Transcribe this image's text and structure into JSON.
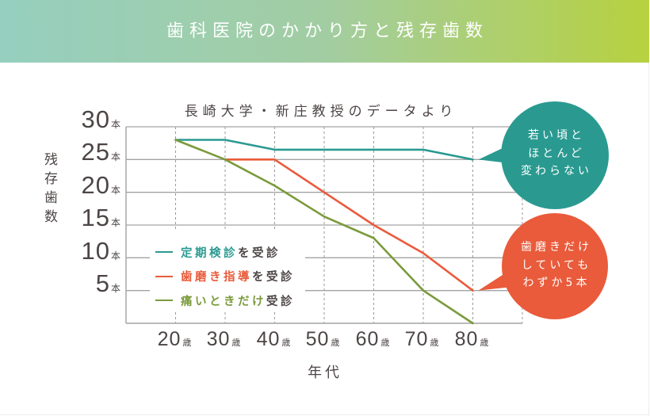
{
  "header": {
    "title": "歯科医院のかかり方と残存歯数"
  },
  "colors": {
    "header_gradient_start": "#96cfbf",
    "header_gradient_end": "#b7d13f",
    "teal": "#2a9a91",
    "orange": "#e95b3b",
    "green": "#7b9b3b",
    "text": "#4d4545",
    "grid": "#a3a3a3"
  },
  "chart_data": {
    "type": "line",
    "title": "長崎大学・新庄教授のデータより",
    "xlabel": "年代",
    "ylabel": "残存歯数",
    "x": [
      20,
      30,
      40,
      50,
      60,
      70,
      80
    ],
    "xlim": [
      10,
      90
    ],
    "ylim": [
      0,
      30
    ],
    "x_ticks": [
      {
        "value": 20,
        "num": "20",
        "unit": "歳"
      },
      {
        "value": 30,
        "num": "30",
        "unit": "歳"
      },
      {
        "value": 40,
        "num": "40",
        "unit": "歳"
      },
      {
        "value": 50,
        "num": "50",
        "unit": "歳"
      },
      {
        "value": 60,
        "num": "60",
        "unit": "歳"
      },
      {
        "value": 70,
        "num": "70",
        "unit": "歳"
      },
      {
        "value": 80,
        "num": "80",
        "unit": "歳"
      }
    ],
    "y_ticks": [
      {
        "value": 30,
        "num": "30",
        "unit": "本"
      },
      {
        "value": 25,
        "num": "25",
        "unit": "本"
      },
      {
        "value": 20,
        "num": "20",
        "unit": "本"
      },
      {
        "value": 15,
        "num": "15",
        "unit": "本"
      },
      {
        "value": 10,
        "num": "10",
        "unit": "本"
      },
      {
        "value": 5,
        "num": "5",
        "unit": "本"
      }
    ],
    "grid": {
      "horizontal": "solid",
      "vertical": "dotted"
    },
    "legend_position": "inside lower-left",
    "series": [
      {
        "name": "定期検診を受診",
        "highlight": "定期検診",
        "suffix": "を受診",
        "color": "#2a9a91",
        "values": [
          28,
          28,
          26.5,
          26.5,
          26.5,
          26.5,
          25
        ]
      },
      {
        "name": "歯磨き指導を受診",
        "highlight": "歯磨き指導",
        "suffix": "を受診",
        "color": "#e95b3b",
        "values": [
          null,
          25,
          25,
          20,
          15,
          10.7,
          5
        ]
      },
      {
        "name": "痛いときだけ受診",
        "highlight": "痛いときだけ",
        "suffix": "受診",
        "color": "#7b9b3b",
        "values": [
          28,
          25,
          21,
          16.3,
          13,
          5,
          0
        ]
      }
    ],
    "annotations": [
      {
        "lines": [
          "若い頃と",
          "ほとんど",
          "変わらない"
        ],
        "color": "#2a9a91",
        "points_to": {
          "x": 80,
          "y": 25
        }
      },
      {
        "lines": [
          "歯磨きだけ",
          "していても",
          "わずか5本"
        ],
        "color": "#e95b3b",
        "points_to": {
          "x": 80,
          "y": 5
        }
      }
    ]
  }
}
